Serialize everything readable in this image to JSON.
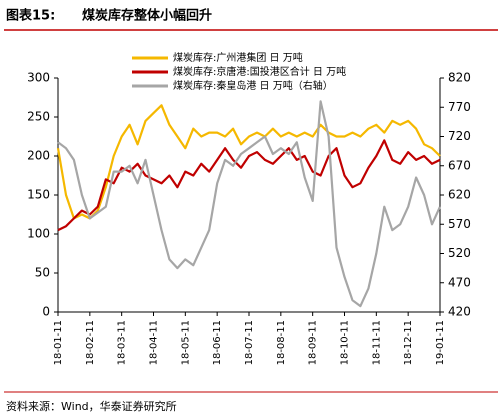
{
  "chart_data": {
    "type": "line",
    "title_label": "图表15:",
    "title": "煤炭库存整体小幅回升",
    "source": "资料来源：Wind，华泰证券研究所",
    "categories": [
      "18-01-11",
      null,
      null,
      null,
      "18-02-11",
      null,
      null,
      null,
      "18-03-11",
      null,
      null,
      null,
      "18-04-11",
      null,
      null,
      null,
      "18-05-11",
      null,
      null,
      null,
      "18-06-11",
      null,
      null,
      null,
      "18-07-11",
      null,
      null,
      null,
      "18-08-11",
      null,
      null,
      null,
      "18-09-11",
      null,
      null,
      null,
      "18-10-11",
      null,
      null,
      null,
      "18-11-11",
      null,
      null,
      null,
      "18-12-11",
      null,
      null,
      null,
      "19-01-11"
    ],
    "series": [
      {
        "name": "煤炭库存:广州港集团 日 万吨",
        "color": "#f5b800",
        "values": [
          210,
          150,
          120,
          125,
          120,
          130,
          160,
          200,
          225,
          240,
          215,
          245,
          255,
          265,
          240,
          225,
          210,
          235,
          225,
          230,
          230,
          225,
          235,
          215,
          225,
          230,
          225,
          235,
          225,
          230,
          225,
          230,
          225,
          240,
          230,
          225,
          225,
          230,
          225,
          235,
          240,
          230,
          245,
          240,
          245,
          235,
          215,
          210,
          200
        ]
      },
      {
        "name": "煤炭库存:京唐港:国投港区合计 日 万吨",
        "color": "#c00000",
        "values": [
          105,
          110,
          120,
          130,
          125,
          135,
          170,
          165,
          185,
          180,
          190,
          175,
          170,
          165,
          175,
          160,
          180,
          175,
          190,
          180,
          195,
          210,
          195,
          185,
          200,
          205,
          195,
          190,
          200,
          210,
          195,
          200,
          180,
          175,
          200,
          210,
          175,
          160,
          165,
          185,
          200,
          220,
          195,
          190,
          205,
          195,
          200,
          190,
          195
        ]
      },
      {
        "name": "煤炭库存:秦皇岛港 日 万吨（右轴）",
        "color": "#a6a6a6",
        "axis": "y2",
        "values": [
          710,
          700,
          680,
          620,
          580,
          590,
          600,
          660,
          660,
          670,
          640,
          680,
          620,
          560,
          510,
          495,
          510,
          500,
          530,
          560,
          640,
          680,
          670,
          690,
          700,
          710,
          720,
          690,
          700,
          690,
          710,
          650,
          610,
          780,
          720,
          530,
          480,
          440,
          430,
          460,
          520,
          600,
          560,
          570,
          600,
          650,
          620,
          570,
          600
        ]
      }
    ],
    "ylim": [
      0,
      300
    ],
    "yticks": [
      0,
      50,
      100,
      150,
      200,
      250,
      300
    ],
    "y2lim": [
      420,
      820
    ],
    "y2ticks": [
      420,
      470,
      520,
      570,
      620,
      670,
      720,
      770,
      820
    ]
  }
}
